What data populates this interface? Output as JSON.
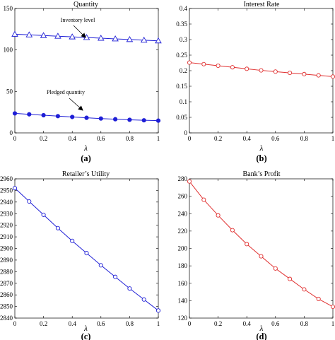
{
  "chart_data": [
    {
      "type": "line",
      "title": "Quantity",
      "xlabel": "λ",
      "panel_label": "(a)",
      "xlim": [
        0,
        1
      ],
      "ylim": [
        0,
        150
      ],
      "xticks": [
        "0",
        "0.2",
        "0.4",
        "0.6",
        "0.8",
        "1"
      ],
      "yticks": [
        "0",
        "50",
        "100",
        "150"
      ],
      "x": [
        0,
        0.1,
        0.2,
        0.3,
        0.4,
        0.5,
        0.6,
        0.7,
        0.8,
        0.9,
        1
      ],
      "series": [
        {
          "name": "Inventory level",
          "marker": "triangle",
          "values": [
            119,
            118.2,
            117.4,
            116.6,
            115.8,
            115,
            114.2,
            113.4,
            112.6,
            111.8,
            111
          ]
        },
        {
          "name": "Pledged quantity",
          "marker": "dot",
          "values": [
            23.5,
            22.4,
            21.3,
            20.2,
            19.2,
            18.2,
            17.3,
            16.5,
            15.8,
            15.2,
            14.8
          ]
        }
      ],
      "annotations": [
        "Inventory level",
        "Pledged quantity"
      ],
      "color": "#1f1fd6"
    },
    {
      "type": "line",
      "title": "Interest Rate",
      "xlabel": "λ",
      "panel_label": "(b)",
      "xlim": [
        0,
        1
      ],
      "ylim": [
        0,
        0.4
      ],
      "xticks": [
        "0",
        "0.2",
        "0.4",
        "0.6",
        "0.8",
        "1"
      ],
      "yticks": [
        "0",
        "0.05",
        "0.1",
        "0.15",
        "0.2",
        "0.25",
        "0.3",
        "0.35",
        "0.4"
      ],
      "x": [
        0,
        0.1,
        0.2,
        0.3,
        0.4,
        0.5,
        0.6,
        0.7,
        0.8,
        0.9,
        1
      ],
      "series": [
        {
          "marker": "circle",
          "values": [
            0.226,
            0.221,
            0.216,
            0.211,
            0.206,
            0.201,
            0.197,
            0.193,
            0.189,
            0.185,
            0.181
          ]
        }
      ],
      "color": "#e03030"
    },
    {
      "type": "line",
      "title": "Retailer’s Utility",
      "xlabel": "λ",
      "panel_label": "(c)",
      "xlim": [
        0,
        1
      ],
      "ylim": [
        2840,
        2960
      ],
      "xticks": [
        "0",
        "0.2",
        "0.4",
        "0.6",
        "0.8",
        "1"
      ],
      "yticks": [
        "2840",
        "2850",
        "2860",
        "2870",
        "2880",
        "2890",
        "2900",
        "2910",
        "2920",
        "2930",
        "2940",
        "2950",
        "2960"
      ],
      "x": [
        0,
        0.1,
        0.2,
        0.3,
        0.4,
        0.5,
        0.6,
        0.7,
        0.8,
        0.9,
        1
      ],
      "series": [
        {
          "marker": "circle",
          "values": [
            2952,
            2940.5,
            2929,
            2917.5,
            2906.5,
            2896,
            2885.5,
            2875.5,
            2865.5,
            2856,
            2846.5
          ]
        }
      ],
      "color": "#1f1fd6"
    },
    {
      "type": "line",
      "title": "Bank’s Profit",
      "xlabel": "λ",
      "panel_label": "(d)",
      "xlim": [
        0,
        1
      ],
      "ylim": [
        120,
        280
      ],
      "xticks": [
        "0",
        "0.2",
        "0.4",
        "0.6",
        "0.8",
        "1"
      ],
      "yticks": [
        "120",
        "140",
        "160",
        "180",
        "200",
        "220",
        "240",
        "260",
        "280"
      ],
      "x": [
        0,
        0.1,
        0.2,
        0.3,
        0.4,
        0.5,
        0.6,
        0.7,
        0.8,
        0.9,
        1
      ],
      "series": [
        {
          "marker": "circle",
          "values": [
            277,
            256,
            238,
            221,
            205,
            191,
            177,
            165,
            153,
            142,
            133
          ]
        }
      ],
      "color": "#e03030"
    }
  ]
}
